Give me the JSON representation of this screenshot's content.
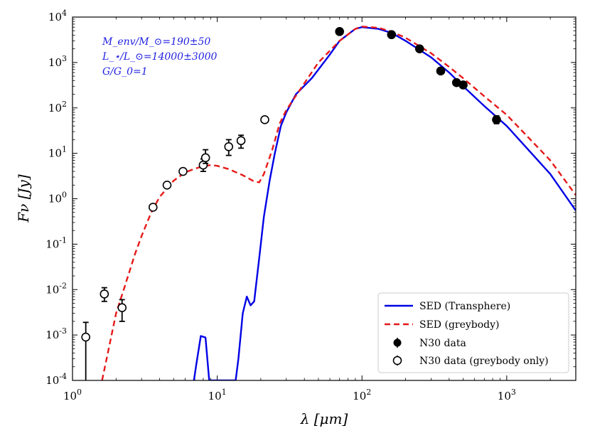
{
  "chart_data": {
    "type": "scatter",
    "xlabel": "λ [μm]",
    "ylabel": "Fν [Jy]",
    "x_scale": "log",
    "y_scale": "log",
    "xlim": [
      1,
      3000
    ],
    "ylim": [
      0.0001,
      10000
    ],
    "x_ticks": [
      {
        "value": 1,
        "label": "10^0"
      },
      {
        "value": 10,
        "label": "10^1"
      },
      {
        "value": 100,
        "label": "10^2"
      },
      {
        "value": 1000,
        "label": "10^3"
      }
    ],
    "y_ticks": [
      {
        "value": 0.0001,
        "label": "10^-4"
      },
      {
        "value": 0.001,
        "label": "10^-3"
      },
      {
        "value": 0.01,
        "label": "10^-2"
      },
      {
        "value": 0.1,
        "label": "10^-1"
      },
      {
        "value": 1,
        "label": "10^0"
      },
      {
        "value": 10,
        "label": "10^1"
      },
      {
        "value": 100,
        "label": "10^2"
      },
      {
        "value": 1000,
        "label": "10^3"
      },
      {
        "value": 10000,
        "label": "10^4"
      }
    ],
    "grid": false,
    "legend_position": "lower-right",
    "annotation": [
      "M_env/M_⊙=190±50",
      "L_⋆/L_⊙=14000±3000",
      "G/G_0=1"
    ],
    "series": [
      {
        "name": "SED (Transphere)",
        "kind": "line",
        "color": "#0000e6",
        "style": "solid",
        "points": [
          [
            6.9,
            0.0001
          ],
          [
            7.2,
            0.00025
          ],
          [
            7.7,
            0.00095
          ],
          [
            8.3,
            0.00088
          ],
          [
            8.8,
            0.0001
          ],
          [
            13.4,
            0.0001
          ],
          [
            14.0,
            0.0003
          ],
          [
            15.0,
            0.003
          ],
          [
            16.0,
            0.007
          ],
          [
            17.0,
            0.0045
          ],
          [
            18.0,
            0.0055
          ],
          [
            19.5,
            0.05
          ],
          [
            21.0,
            0.4
          ],
          [
            23.0,
            2.5
          ],
          [
            25.0,
            10
          ],
          [
            27.5,
            40
          ],
          [
            30,
            80
          ],
          [
            35,
            200
          ],
          [
            45,
            450
          ],
          [
            60,
            1500
          ],
          [
            70,
            3000
          ],
          [
            90,
            5500
          ],
          [
            100,
            6000
          ],
          [
            130,
            5500
          ],
          [
            160,
            4500
          ],
          [
            200,
            3000
          ],
          [
            300,
            1300
          ],
          [
            400,
            600
          ],
          [
            500,
            300
          ],
          [
            700,
            110
          ],
          [
            1000,
            40
          ],
          [
            2000,
            3.5
          ],
          [
            3000,
            0.55
          ]
        ]
      },
      {
        "name": "SED (greybody)",
        "kind": "line",
        "color": "#e61919",
        "style": "dashed",
        "points": [
          [
            1.6,
            0.0001
          ],
          [
            1.8,
            0.0006
          ],
          [
            2.0,
            0.003
          ],
          [
            2.3,
            0.012
          ],
          [
            2.7,
            0.06
          ],
          [
            3.0,
            0.15
          ],
          [
            3.5,
            0.5
          ],
          [
            4.0,
            1.1
          ],
          [
            5.0,
            2.5
          ],
          [
            6.0,
            3.8
          ],
          [
            7.0,
            4.6
          ],
          [
            8.0,
            5.2
          ],
          [
            9.0,
            5.5
          ],
          [
            10.0,
            5.3
          ],
          [
            12,
            4.5
          ],
          [
            15,
            3.3
          ],
          [
            18,
            2.4
          ],
          [
            19.5,
            2.3
          ],
          [
            21,
            3.5
          ],
          [
            24,
            12
          ],
          [
            27,
            45
          ],
          [
            30,
            90
          ],
          [
            40,
            350
          ],
          [
            50,
            1000
          ],
          [
            70,
            3000
          ],
          [
            90,
            5500
          ],
          [
            100,
            6200
          ],
          [
            130,
            5800
          ],
          [
            160,
            4800
          ],
          [
            200,
            3500
          ],
          [
            300,
            1600
          ],
          [
            400,
            800
          ],
          [
            500,
            450
          ],
          [
            700,
            180
          ],
          [
            1000,
            70
          ],
          [
            2000,
            7
          ],
          [
            3000,
            1.2
          ]
        ]
      },
      {
        "name": "N30 data",
        "kind": "points",
        "marker": "filled-circle",
        "color": "#000000",
        "points": [
          {
            "x": 70,
            "y": 4800
          },
          {
            "x": 160,
            "y": 4100
          },
          {
            "x": 250,
            "y": 2000
          },
          {
            "x": 350,
            "y": 650
          },
          {
            "x": 450,
            "y": 360
          },
          {
            "x": 500,
            "y": 320
          },
          {
            "x": 850,
            "y": 55,
            "yerr": [
              10,
              12
            ]
          }
        ]
      },
      {
        "name": "N30 data (greybody only)",
        "kind": "points",
        "marker": "open-circle",
        "color": "#000000",
        "points": [
          {
            "x": 1.235,
            "y": 0.0009,
            "yerr": [
              0.0009,
              0.001
            ]
          },
          {
            "x": 1.66,
            "y": 0.008,
            "yerr": [
              0.0025,
              0.003
            ]
          },
          {
            "x": 2.2,
            "y": 0.004,
            "yerr": [
              0.002,
              0.002
            ]
          },
          {
            "x": 3.6,
            "y": 0.65
          },
          {
            "x": 4.5,
            "y": 2.0
          },
          {
            "x": 5.8,
            "y": 4.0
          },
          {
            "x": 8.0,
            "y": 5.5,
            "yerr": [
              1.5,
              2.0
            ]
          },
          {
            "x": 8.3,
            "y": 8.0,
            "yerr": [
              2.0,
              4.0
            ]
          },
          {
            "x": 12.0,
            "y": 14.0,
            "yerr": [
              5.0,
              6.0
            ]
          },
          {
            "x": 14.6,
            "y": 19.0,
            "yerr": [
              6.0,
              6.0
            ]
          },
          {
            "x": 21.3,
            "y": 55.0
          }
        ]
      }
    ]
  }
}
